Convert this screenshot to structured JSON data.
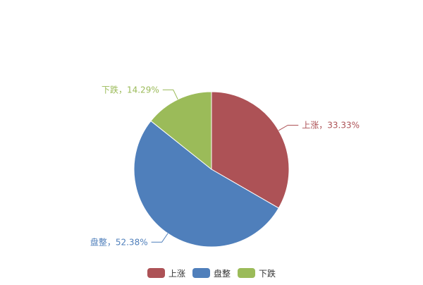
{
  "chart_data": {
    "type": "pie",
    "title": "",
    "slices": [
      {
        "label": "上涨",
        "value": 33.33,
        "display": "上涨，33.33%",
        "color": "#ad5256"
      },
      {
        "label": "盘整",
        "value": 52.38,
        "display": "盘整，52.38%",
        "color": "#4f7fbb"
      },
      {
        "label": "下跌",
        "value": 14.29,
        "display": "下跌，14.29%",
        "color": "#9bbb59"
      }
    ],
    "start_angle": "top",
    "direction": "clockwise",
    "legend_position": "bottom"
  }
}
